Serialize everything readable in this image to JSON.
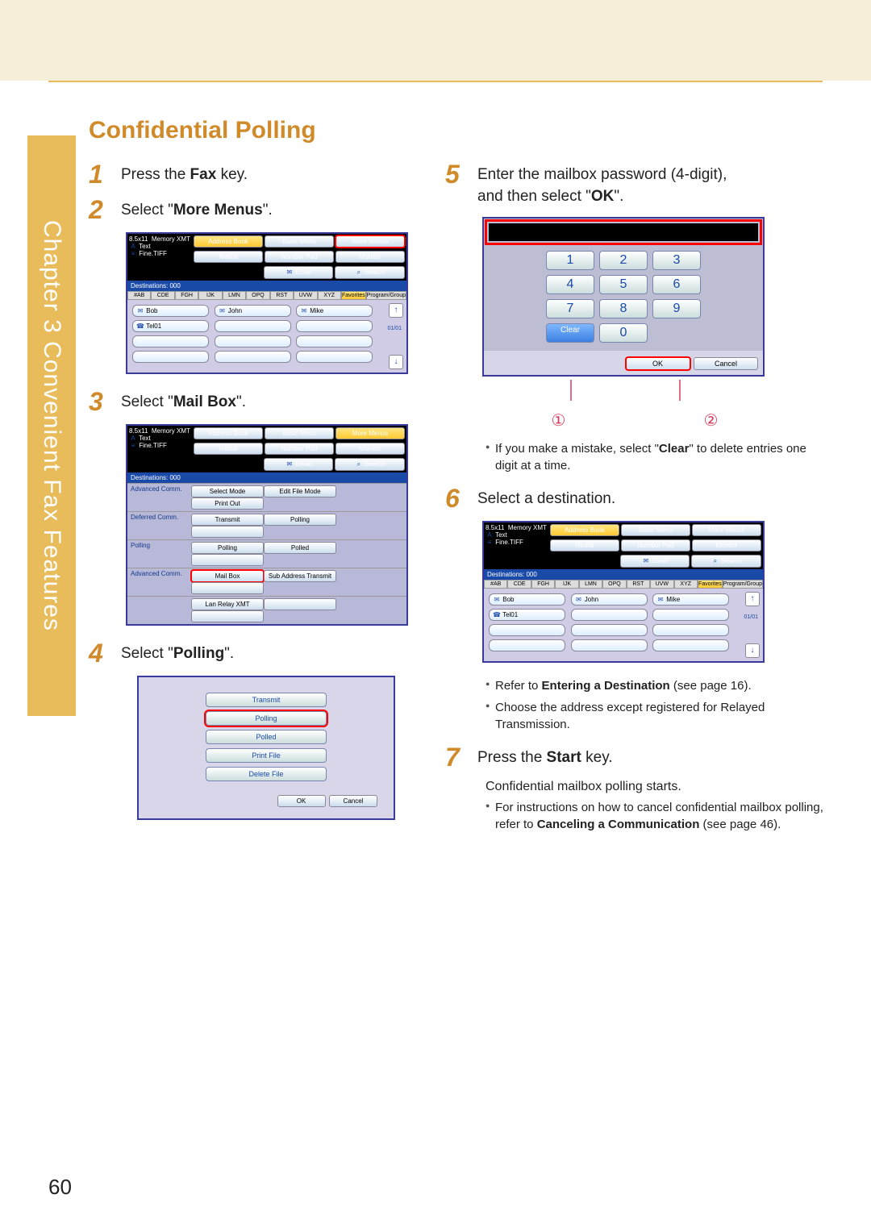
{
  "chapter_tab": "Chapter 3   Convenient Fax Features",
  "title": "Confidential Polling",
  "page_number": "60",
  "step1": {
    "num": "1",
    "pre": "Press the ",
    "bold": "Fax",
    "post": " key."
  },
  "step2": {
    "num": "2",
    "pre": "Select \"",
    "bold": "More Menus",
    "post": "\"."
  },
  "step3": {
    "num": "3",
    "pre": "Select \"",
    "bold": "Mail Box",
    "post": "\"."
  },
  "step4": {
    "num": "4",
    "pre": "Select \"",
    "bold": "Polling",
    "post": "\"."
  },
  "step5": {
    "num": "5",
    "line1": "Enter the mailbox password (4-digit),",
    "line2pre": "and then select \"",
    "line2bold": "OK",
    "line2post": "\"."
  },
  "step5_bullet1a": "If you make a mistake, select \"",
  "step5_bullet1b": "Clear",
  "step5_bullet1c": "\" to delete entries one digit at a time.",
  "step6": {
    "num": "6",
    "text": "Select a destination."
  },
  "step6_b1a": "Refer to ",
  "step6_b1b": "Entering a Destination",
  "step6_b1c": " (see page 16).",
  "step6_b2": "Choose the address except registered for Relayed Transmission.",
  "step7": {
    "num": "7",
    "pre": "Press the ",
    "bold": "Start",
    "post": " key."
  },
  "step7_sub": "Confidential mailbox polling starts.",
  "step7_b1a": "For instructions on how to cancel confidential mailbox polling, refer to ",
  "step7_b1b": "Canceling a Communication",
  "step7_b1c": " (see page 46).",
  "shot_common": {
    "hdr_left_line1": "8.5x11",
    "hdr_left_line2": "Memory XMT",
    "hdr_text": "Text",
    "hdr_fine": "Fine.TIFF",
    "address_book": "Address Book",
    "basic_menu": "Basic Menu",
    "more_menus": "More Menus",
    "redial": "Redial",
    "number_pad": "Number Pad",
    "monitor": "Monitor",
    "email": "Email",
    "search": "Search",
    "dest": "Destinations: 000",
    "tabs": [
      "#AB",
      "CDE",
      "FGH",
      "IJK",
      "LMN",
      "OPQ",
      "RST",
      "UVW",
      "XYZ",
      "Favorites",
      "Program/Group"
    ],
    "names": [
      "Bob",
      "John",
      "Mike",
      "Tel01"
    ],
    "page_ind": "01/01"
  },
  "shot3": {
    "rows": [
      {
        "label": "Advanced Comm.",
        "btns": [
          "Select Mode",
          "Edit File Mode",
          "Print Out"
        ]
      },
      {
        "label": "Deferred Comm.",
        "btns": [
          "Transmit",
          "Polling",
          ""
        ]
      },
      {
        "label": "Polling",
        "btns": [
          "Polling",
          "Polled",
          ""
        ]
      },
      {
        "label": "Advanced Comm.",
        "btns": [
          "Mail Box",
          "Sub Address Transmit",
          ""
        ],
        "red_idx": 0
      },
      {
        "label": "",
        "btns": [
          "Lan Relay XMT",
          "",
          ""
        ]
      }
    ]
  },
  "poll_list": [
    "Transmit",
    "Polling",
    "Polled",
    "Print File",
    "Delete File"
  ],
  "poll_red_idx": 1,
  "ok": "OK",
  "cancel": "Cancel",
  "clear": "Clear",
  "keypad": [
    "1",
    "2",
    "3",
    "4",
    "5",
    "6",
    "7",
    "8",
    "9",
    "Clear",
    "0",
    ""
  ],
  "callouts": [
    "①",
    "②"
  ]
}
